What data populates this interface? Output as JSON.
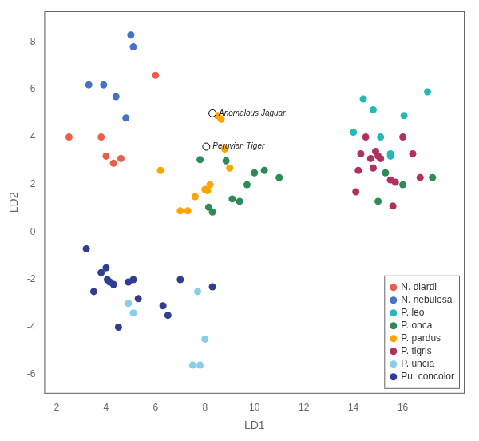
{
  "chart_data": {
    "type": "scatter",
    "xlabel": "LD1",
    "ylabel": "LD2",
    "xlim": [
      1.5,
      18.5
    ],
    "ylim": [
      -6.8,
      9.3
    ],
    "xticks": [
      2,
      4,
      6,
      8,
      10,
      12,
      14,
      16
    ],
    "yticks": [
      -6,
      -4,
      -2,
      0,
      2,
      4,
      6,
      8
    ],
    "grid": false,
    "legend": "lower right",
    "series": [
      {
        "name": "N. diardi",
        "color": "#E8604C",
        "x": [
          2.5,
          3.8,
          4.0,
          4.3,
          4.6,
          6.0
        ],
        "values": [
          4.0,
          4.0,
          3.2,
          2.9,
          3.1,
          6.6
        ]
      },
      {
        "name": "N. nebulosa",
        "color": "#4472C4",
        "x": [
          3.3,
          3.9,
          4.4,
          4.8,
          5.0,
          5.1
        ],
        "values": [
          6.2,
          6.2,
          5.7,
          4.8,
          8.3,
          7.8
        ]
      },
      {
        "name": "P. leo",
        "color": "#26B8B8",
        "x": [
          14.0,
          14.4,
          14.8,
          15.1,
          15.5,
          15.5,
          16.05,
          17.0
        ],
        "values": [
          4.2,
          5.6,
          5.15,
          4.0,
          3.3,
          3.2,
          4.9,
          5.9
        ]
      },
      {
        "name": "P. onca",
        "color": "#2E8B57",
        "x": [
          7.8,
          8.15,
          8.3,
          8.85,
          9.1,
          9.4,
          9.7,
          10.0,
          10.4,
          11.0,
          15.0,
          15.3,
          16.0,
          17.2
        ],
        "values": [
          3.05,
          1.05,
          0.85,
          3.0,
          1.4,
          1.3,
          2.0,
          2.5,
          2.6,
          2.3,
          1.3,
          2.5,
          2.0,
          2.3
        ]
      },
      {
        "name": "P. pardus",
        "color": "#FFA500",
        "x": [
          6.2,
          7.0,
          7.3,
          7.6,
          8.0,
          8.1,
          8.2,
          8.5,
          8.65,
          8.8,
          9.0
        ],
        "values": [
          2.6,
          0.9,
          0.9,
          1.5,
          1.8,
          1.75,
          2.0,
          4.9,
          4.75,
          3.5,
          2.7
        ]
      },
      {
        "name": "P. tigris",
        "color": "#B03060",
        "x": [
          14.1,
          14.2,
          14.3,
          14.5,
          14.7,
          14.8,
          14.9,
          15.0,
          15.1,
          15.5,
          15.6,
          15.7,
          16.0,
          16.4,
          16.7
        ],
        "values": [
          1.7,
          2.6,
          3.3,
          4.0,
          3.1,
          2.7,
          3.4,
          3.2,
          3.1,
          2.2,
          1.1,
          2.1,
          4.0,
          3.3,
          2.3
        ]
      },
      {
        "name": "P. uncia",
        "color": "#87CEEB",
        "x": [
          4.9,
          5.1,
          7.7,
          8.0,
          7.5,
          7.8
        ],
        "values": [
          -3.0,
          -3.4,
          -2.5,
          -4.5,
          -5.6,
          -5.6
        ]
      },
      {
        "name": "Pu. concolor",
        "color": "#2F3E8E",
        "x": [
          3.2,
          3.5,
          3.8,
          4.0,
          4.05,
          4.15,
          4.3,
          4.5,
          4.9,
          5.1,
          5.3,
          6.3,
          6.5,
          7.0,
          8.3
        ],
        "values": [
          -0.7,
          -2.5,
          -1.7,
          -1.5,
          -2.0,
          -2.1,
          -2.2,
          -4.0,
          -2.1,
          -2.0,
          -2.8,
          -3.1,
          -3.5,
          -2.0,
          -2.3
        ]
      }
    ],
    "annotations": [
      {
        "text": "Anomalous Jaguar",
        "x": 8.3,
        "y": 5.0
      },
      {
        "text": "Peruvian Tiger",
        "x": 8.05,
        "y": 3.6
      }
    ]
  }
}
